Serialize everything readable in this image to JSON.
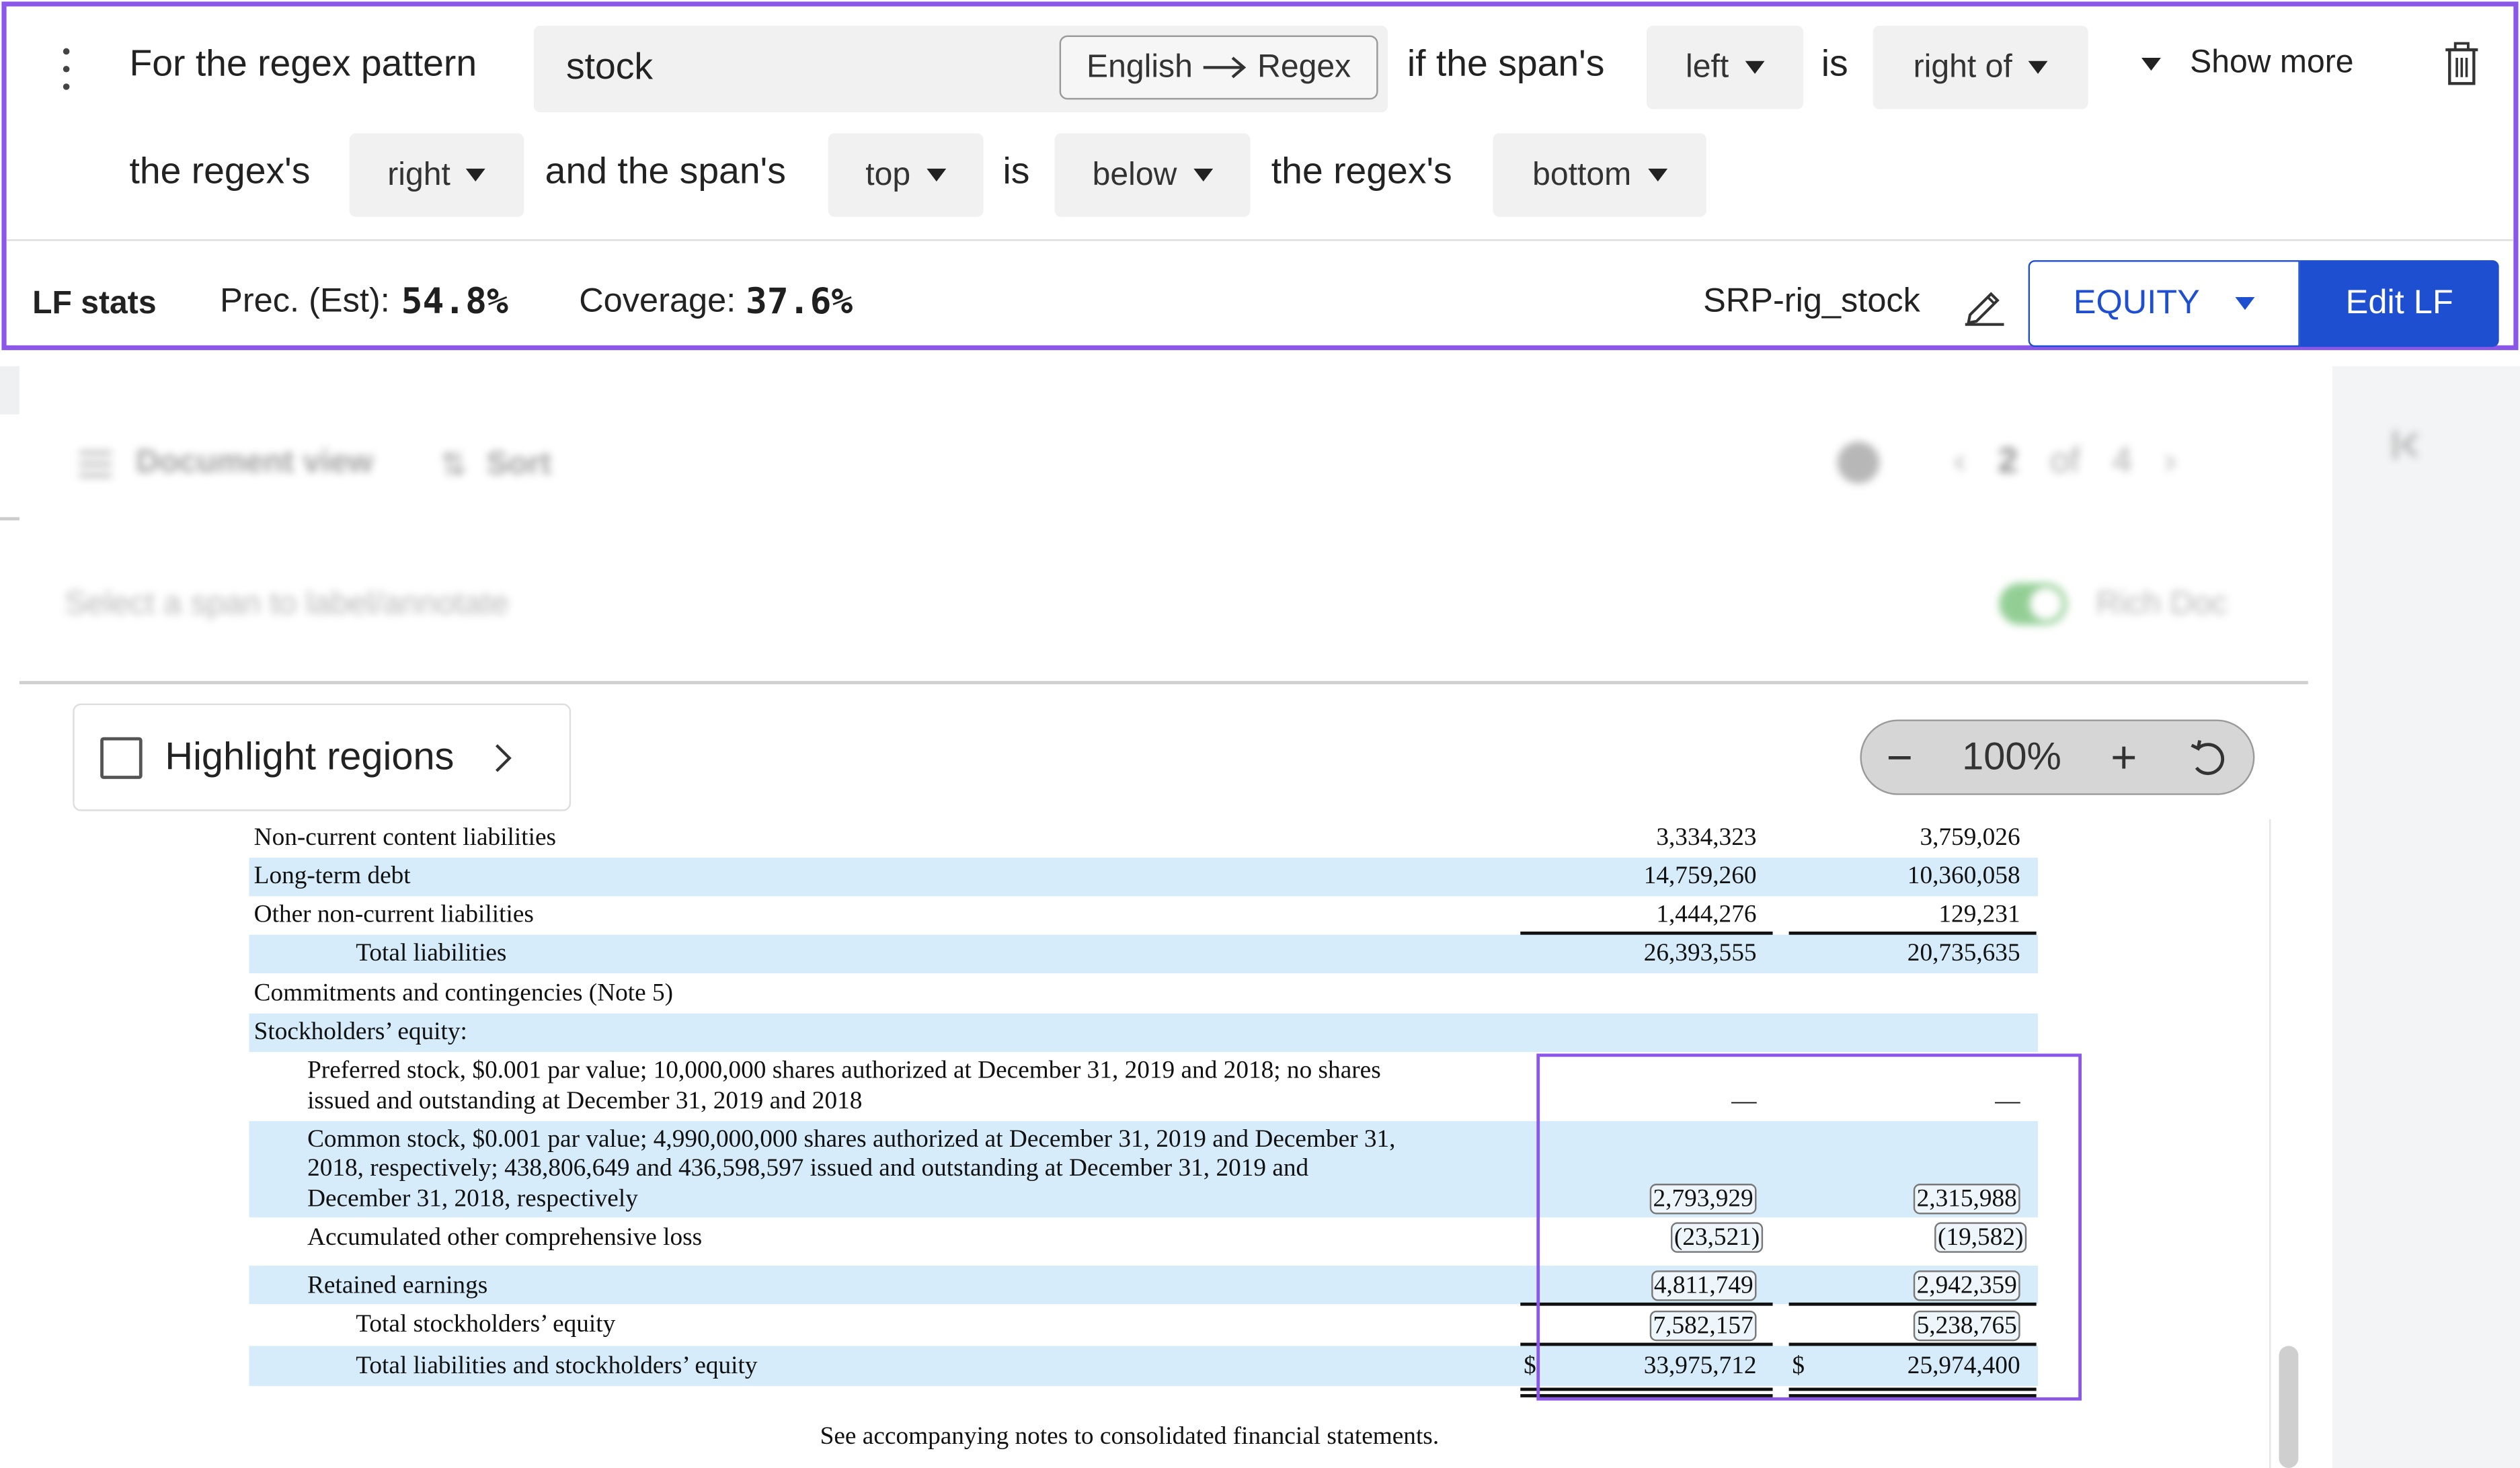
{
  "lf_builder": {
    "prefix_text": "For the regex pattern",
    "pattern_value": "stock",
    "mode_toggle": {
      "left": "English",
      "right": "Regex"
    },
    "if_text": "if the span's",
    "span_side": "left",
    "is_text_1": "is",
    "relation_1": "right of",
    "show_more": "Show more",
    "regex_text_1": "the regex's",
    "regex_side_1": "right",
    "and_text": "and the span's",
    "span_side_2": "top",
    "is_text_2": "is",
    "relation_2": "below",
    "regex_text_2": "the regex's",
    "regex_side_2": "bottom"
  },
  "lf_stats": {
    "label": "LF stats",
    "precision_label": "Prec. (Est):",
    "precision_value": "54.8%",
    "coverage_label": "Coverage:",
    "coverage_value": "37.6%",
    "lf_name": "SRP-rig_stock",
    "label_class": "EQUITY",
    "edit_button": "Edit LF"
  },
  "doc_toolbar": {
    "view_label": "Document view",
    "sort_label": "Sort",
    "page_current": "2",
    "page_of": "of",
    "page_total": "4",
    "select_hint": "Select a span to label/annotate",
    "rich_doc_label": "Rich Doc"
  },
  "highlight": {
    "label": "Highlight regions"
  },
  "zoom": {
    "level": "100%"
  },
  "table": {
    "rows": [
      {
        "label": "Non-current content liabilities",
        "c1": "3,334,323",
        "c2": "3,759,026"
      },
      {
        "label": "Long-term debt",
        "c1": "14,759,260",
        "c2": "10,360,058"
      },
      {
        "label": "Other non-current liabilities",
        "c1": "1,444,276",
        "c2": "129,231"
      },
      {
        "label": "Total liabilities",
        "c1": "26,393,555",
        "c2": "20,735,635"
      },
      {
        "label": "Commitments and contingencies (Note 5)"
      },
      {
        "label": "Stockholders’ equity:"
      },
      {
        "label_line1": "Preferred stock, $0.001 par value; 10,000,000 shares authorized at December 31, 2019 and 2018; no shares",
        "label_line2": "issued and outstanding at December 31, 2019 and 2018",
        "c1": "—",
        "c2": "—"
      },
      {
        "label_line1": "Common stock, $0.001 par value; 4,990,000,000 shares authorized at December 31, 2019 and December 31,",
        "label_line2": "2018, respectively; 438,806,649 and 436,598,597 issued and outstanding at December 31, 2019 and",
        "label_line3": "December 31, 2018, respectively",
        "c1": "2,793,929",
        "c2": "2,315,988"
      },
      {
        "label": "Accumulated other comprehensive loss",
        "c1": "(23,521)",
        "c2": "(19,582)"
      },
      {
        "label": "Retained earnings",
        "c1": "4,811,749",
        "c2": "2,942,359"
      },
      {
        "label": "Total stockholders’ equity",
        "c1": "7,582,157",
        "c2": "5,238,765"
      },
      {
        "label": "Total liabilities and stockholders’ equity",
        "cur": "$",
        "c1": "33,975,712",
        "c2": "25,974,400"
      }
    ],
    "footnote": "See accompanying notes to consolidated financial statements."
  },
  "colors": {
    "accent_purple": "#8a57e8",
    "primary_blue": "#1f4fd1",
    "row_highlight": "#d6ecfa"
  }
}
